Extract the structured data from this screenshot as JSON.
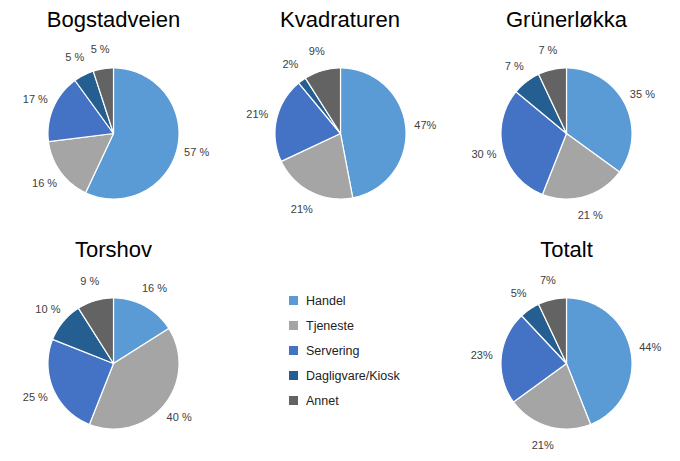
{
  "chart_data": [
    {
      "type": "pie",
      "title": "Bogstadveien",
      "categories": [
        "Handel",
        "Tjeneste",
        "Servering",
        "Dagligvare/Kiosk",
        "Annet"
      ],
      "values": [
        57,
        16,
        17,
        5,
        5
      ],
      "value_labels": [
        "57 %",
        "16 %",
        "17 %",
        "5 %",
        "5 %"
      ],
      "colors": [
        "#5b9bd5",
        "#a5a5a5",
        "#4472c4",
        "#255e91",
        "#636363"
      ],
      "data_labels": true,
      "legend": "center"
    },
    {
      "type": "pie",
      "title": "Kvadraturen",
      "categories": [
        "Handel",
        "Tjeneste",
        "Servering",
        "Dagligvare/Kiosk",
        "Annet"
      ],
      "values": [
        47,
        21,
        21,
        2,
        9
      ],
      "value_labels": [
        "47%",
        "21%",
        "21%",
        "2%",
        "9%"
      ],
      "colors": [
        "#5b9bd5",
        "#a5a5a5",
        "#4472c4",
        "#255e91",
        "#636363"
      ],
      "data_labels": true
    },
    {
      "type": "pie",
      "title": "Grünerløkka",
      "categories": [
        "Handel",
        "Tjeneste",
        "Servering",
        "Dagligvare/Kiosk",
        "Annet"
      ],
      "values": [
        35,
        21,
        30,
        7,
        7
      ],
      "value_labels": [
        "35 %",
        "21 %",
        "30 %",
        "7 %",
        "7 %"
      ],
      "colors": [
        "#5b9bd5",
        "#a5a5a5",
        "#4472c4",
        "#255e91",
        "#636363"
      ],
      "data_labels": true
    },
    {
      "type": "pie",
      "title": "Torshov",
      "categories": [
        "Handel",
        "Tjeneste",
        "Servering",
        "Dagligvare/Kiosk",
        "Annet"
      ],
      "values": [
        16,
        40,
        25,
        10,
        9
      ],
      "value_labels": [
        "16 %",
        "40 %",
        "25 %",
        "10 %",
        "9 %"
      ],
      "colors": [
        "#5b9bd5",
        "#a5a5a5",
        "#4472c4",
        "#255e91",
        "#636363"
      ],
      "data_labels": true
    },
    {
      "type": "pie",
      "title": "Totalt",
      "categories": [
        "Handel",
        "Tjeneste",
        "Servering",
        "Dagligvare/Kiosk",
        "Annet"
      ],
      "values": [
        44,
        21,
        23,
        5,
        7
      ],
      "value_labels": [
        "44%",
        "21%",
        "23%",
        "5%",
        "7%"
      ],
      "colors": [
        "#5b9bd5",
        "#a5a5a5",
        "#4472c4",
        "#255e91",
        "#636363"
      ],
      "data_labels": true
    }
  ]
}
